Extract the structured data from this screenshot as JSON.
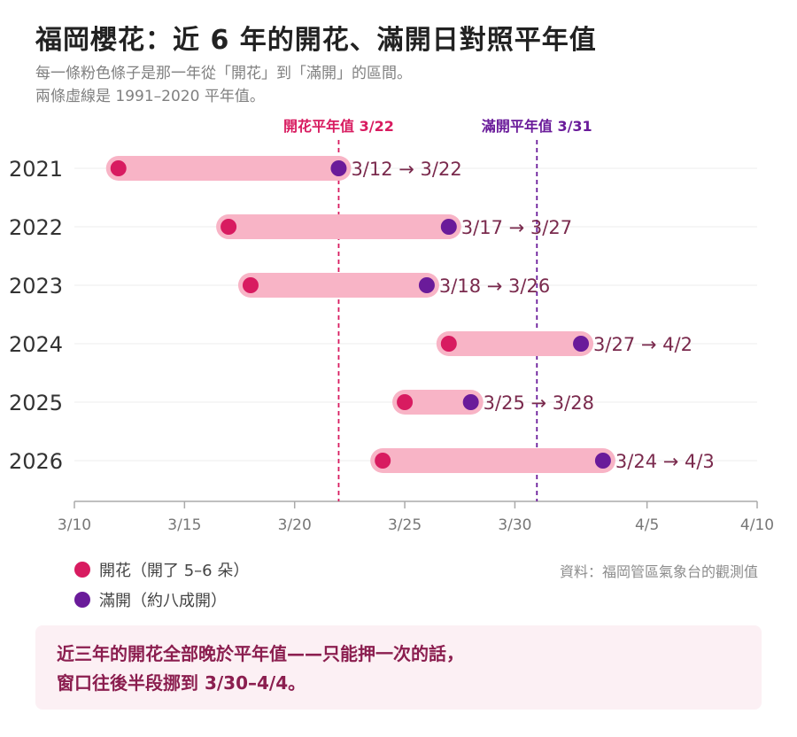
{
  "header": {
    "title": "福岡櫻花：近 6 年的開花、滿開日對照平年值",
    "subtitle_line1": "每一條粉色條子是那一年從「開花」到「滿開」的區間。",
    "subtitle_line2": "兩條虛線是 1991–2020 平年值。"
  },
  "colors": {
    "bloom": "#d81b60",
    "full": "#6a1b9a",
    "bar": "#f8b4c6",
    "label": "#7a2a4d"
  },
  "chart_data": {
    "type": "range-bar",
    "years": [
      "2021",
      "2022",
      "2023",
      "2024",
      "2025",
      "2026"
    ],
    "bloom_dates": [
      "3/12",
      "3/17",
      "3/18",
      "3/27",
      "3/25",
      "3/24"
    ],
    "full_bloom_dates": [
      "3/22",
      "3/27",
      "3/26",
      "4/2",
      "3/28",
      "4/3"
    ],
    "range_labels": [
      "3/12 → 3/22",
      "3/17 → 3/27",
      "3/18 → 3/26",
      "3/27 → 4/2",
      "3/25 → 3/28",
      "3/24 → 4/3"
    ],
    "x_ticks": [
      "3/10",
      "3/15",
      "3/20",
      "3/25",
      "3/30",
      "4/5",
      "4/10"
    ],
    "xlim": [
      "3/10",
      "4/10"
    ],
    "reference_lines": [
      {
        "label": "開花平年值 3/22",
        "date": "3/22",
        "color": "#d81b60"
      },
      {
        "label": "滿開平年值 3/31",
        "date": "3/31",
        "color": "#6a1b9a"
      }
    ],
    "grid": true
  },
  "legend": {
    "bloom": "開花（開了 5–6 朵）",
    "full": "滿開（約八成開）"
  },
  "source": "資料：福岡管區氣象台的觀測值",
  "note": {
    "line1": "近三年的開花全部晚於平年值——只能押一次的話，",
    "line2": "窗口往後半段挪到 3/30–4/4。"
  }
}
